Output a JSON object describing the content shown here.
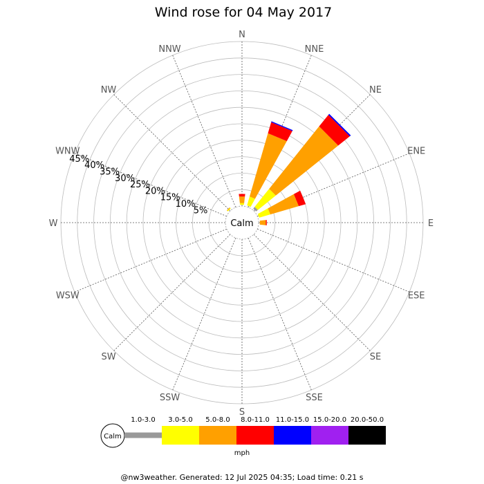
{
  "footer": "@nw3weather.  Generated: 12 Jul 2025 04:35; Load time: 0.21 s",
  "chart_data": {
    "type": "wind-rose",
    "title": "Wind rose for 04 May 2017",
    "calm_label": "Calm",
    "units_label": "mph",
    "directions": [
      "N",
      "NNE",
      "NE",
      "ENE",
      "E",
      "ESE",
      "SE",
      "SSE",
      "S",
      "SSW",
      "SW",
      "WSW",
      "W",
      "WNW",
      "NW",
      "NNW"
    ],
    "radial_ticks": [
      "5%",
      "10%",
      "15%",
      "20%",
      "25%",
      "30%",
      "35%",
      "40%",
      "45%"
    ],
    "radial_max": 50,
    "speed_bins": [
      {
        "label": "1.0-3.0",
        "color": "#999999"
      },
      {
        "label": "3.0-5.0",
        "color": "#ffff00"
      },
      {
        "label": "5.0-8.0",
        "color": "#ffa000"
      },
      {
        "label": "8.0-11.0",
        "color": "#ff0000"
      },
      {
        "label": "11.0-15.0",
        "color": "#0000ff"
      },
      {
        "label": "15.0-20.0",
        "color": "#a020f0"
      },
      {
        "label": "20.0-50.0",
        "color": "#000000"
      }
    ],
    "frequencies": [
      [
        0,
        0.5,
        2.0,
        0.8,
        0,
        0,
        0
      ],
      [
        0,
        2.8,
        20.0,
        3.5,
        0.3,
        0,
        0
      ],
      [
        0.7,
        7.0,
        24.3,
        4.5,
        0.4,
        0,
        0
      ],
      [
        0,
        3.5,
        9.0,
        2.2,
        0,
        0,
        0
      ],
      [
        0,
        0,
        1.8,
        0.3,
        0,
        0,
        0
      ],
      [
        0,
        0,
        0,
        0,
        0,
        0,
        0
      ],
      [
        0,
        0,
        0,
        0,
        0,
        0,
        0
      ],
      [
        0,
        0,
        0,
        0,
        0,
        0,
        0
      ],
      [
        0,
        0,
        0,
        0,
        0,
        0,
        0
      ],
      [
        0,
        0,
        0,
        0,
        0,
        0,
        0
      ],
      [
        0,
        0,
        0,
        0,
        0,
        0,
        0
      ],
      [
        0,
        0,
        0,
        0,
        0,
        0,
        0
      ],
      [
        0,
        0,
        0,
        0,
        0,
        0,
        0
      ],
      [
        0,
        0,
        0,
        0,
        0,
        0,
        0
      ],
      [
        0,
        0.3,
        0.2,
        0,
        0,
        0,
        0
      ],
      [
        0,
        0,
        0,
        0,
        0,
        0,
        0
      ]
    ]
  }
}
